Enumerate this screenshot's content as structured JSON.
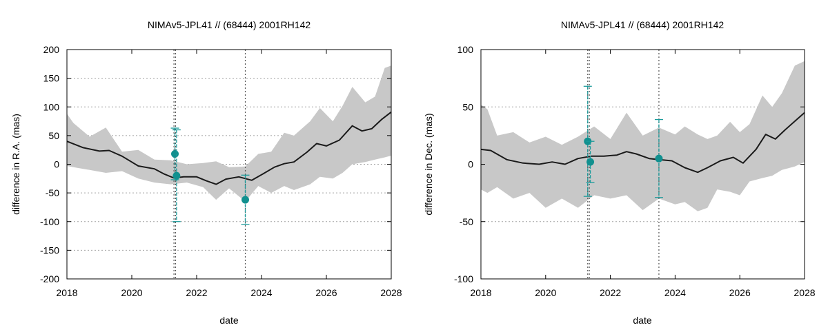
{
  "chart_data": [
    {
      "type": "line",
      "title": "NIMAv5-JPL41 // (68444) 2001RH142",
      "xlabel": "date",
      "ylabel": "difference in R.A. (mas)",
      "xlim": [
        2018,
        2028
      ],
      "ylim": [
        -200,
        200
      ],
      "xticks": [
        2018,
        2020,
        2022,
        2024,
        2026,
        2028
      ],
      "yticks": [
        -200,
        -150,
        -100,
        -50,
        0,
        50,
        100,
        150,
        200
      ],
      "grid": true,
      "model": {
        "x": [
          2018.0,
          2018.5,
          2019.0,
          2019.3,
          2019.7,
          2020.2,
          2020.7,
          2021.0,
          2021.3,
          2021.6,
          2022.0,
          2022.3,
          2022.6,
          2022.9,
          2023.3,
          2023.7,
          2024.1,
          2024.4,
          2024.7,
          2025.0,
          2025.4,
          2025.7,
          2026.0,
          2026.4,
          2026.8,
          2027.1,
          2027.4,
          2027.7,
          2028.0
        ],
        "y": [
          40,
          29,
          23,
          24,
          14,
          -3,
          -8,
          -17,
          -24,
          -22,
          -22,
          -29,
          -35,
          -26,
          -22,
          -28,
          -15,
          -5,
          1,
          4,
          21,
          36,
          32,
          42,
          67,
          58,
          62,
          78,
          91
        ]
      },
      "uncertainty_band": {
        "x": [
          2018.0,
          2018.2,
          2018.7,
          2019.2,
          2019.7,
          2020.2,
          2020.7,
          2021.2,
          2021.7,
          2022.2,
          2022.6,
          2023.0,
          2023.5,
          2023.9,
          2024.3,
          2024.7,
          2025.0,
          2025.5,
          2025.8,
          2026.2,
          2026.5,
          2026.8,
          2027.2,
          2027.5,
          2027.8,
          2028.0
        ],
        "upper": [
          88,
          72,
          48,
          64,
          22,
          25,
          8,
          7,
          0,
          2,
          5,
          -5,
          -4,
          18,
          22,
          55,
          50,
          75,
          98,
          75,
          102,
          135,
          108,
          118,
          168,
          172
        ],
        "lower": [
          -3,
          -5,
          -10,
          -15,
          -12,
          -25,
          -32,
          -35,
          -32,
          -40,
          -62,
          -42,
          -65,
          -38,
          -50,
          -38,
          -45,
          -35,
          -22,
          -25,
          -15,
          0,
          4,
          8,
          12,
          15
        ]
      },
      "observation_lines": [
        2021.3,
        2021.35,
        2023.5
      ],
      "observations": [
        {
          "x": 2021.33,
          "y": 18,
          "err": 45
        },
        {
          "x": 2021.38,
          "y": -20,
          "err": 80
        },
        {
          "x": 2023.5,
          "y": -62,
          "err": 43
        }
      ]
    },
    {
      "type": "line",
      "title": "NIMAv5-JPL41 // (68444) 2001RH142",
      "xlabel": "date",
      "ylabel": "difference in Dec. (mas)",
      "xlim": [
        2018,
        2028
      ],
      "ylim": [
        -100,
        100
      ],
      "xticks": [
        2018,
        2020,
        2022,
        2024,
        2026,
        2028
      ],
      "yticks": [
        -100,
        -50,
        0,
        50,
        100
      ],
      "grid": true,
      "model": {
        "x": [
          2018.0,
          2018.3,
          2018.8,
          2019.3,
          2019.8,
          2020.2,
          2020.6,
          2021.0,
          2021.4,
          2021.8,
          2022.2,
          2022.5,
          2022.8,
          2023.2,
          2023.5,
          2023.9,
          2024.3,
          2024.7,
          2025.0,
          2025.4,
          2025.8,
          2026.1,
          2026.5,
          2026.8,
          2027.1,
          2027.4,
          2027.8,
          2028.0
        ],
        "y": [
          13,
          12,
          4,
          1,
          0,
          2,
          0,
          5,
          7,
          7,
          8,
          11,
          9,
          5,
          4,
          3,
          -3,
          -7,
          -3,
          3,
          6,
          1,
          13,
          26,
          22,
          30,
          40,
          45
        ]
      },
      "uncertainty_band": {
        "x": [
          2018.0,
          2018.2,
          2018.5,
          2019.0,
          2019.5,
          2020.0,
          2020.5,
          2021.0,
          2021.5,
          2022.0,
          2022.5,
          2023.0,
          2023.5,
          2024.0,
          2024.3,
          2024.7,
          2025.0,
          2025.3,
          2025.7,
          2026.0,
          2026.3,
          2026.7,
          2027.0,
          2027.3,
          2027.7,
          2028.0
        ],
        "upper": [
          52,
          48,
          25,
          28,
          19,
          24,
          17,
          24,
          33,
          22,
          45,
          25,
          32,
          26,
          33,
          26,
          22,
          25,
          37,
          28,
          35,
          60,
          50,
          62,
          86,
          90
        ],
        "lower": [
          -22,
          -25,
          -20,
          -30,
          -25,
          -38,
          -30,
          -38,
          -27,
          -30,
          -27,
          -40,
          -30,
          -35,
          -33,
          -41,
          -38,
          -22,
          -24,
          -27,
          -15,
          -12,
          -10,
          -5,
          -2,
          2
        ]
      },
      "observation_lines": [
        2021.3,
        2021.35,
        2023.5
      ],
      "observations": [
        {
          "x": 2021.3,
          "y": 20,
          "err": 48
        },
        {
          "x": 2021.38,
          "y": 2,
          "err": 18
        },
        {
          "x": 2023.5,
          "y": 5,
          "err": 34
        }
      ]
    }
  ]
}
